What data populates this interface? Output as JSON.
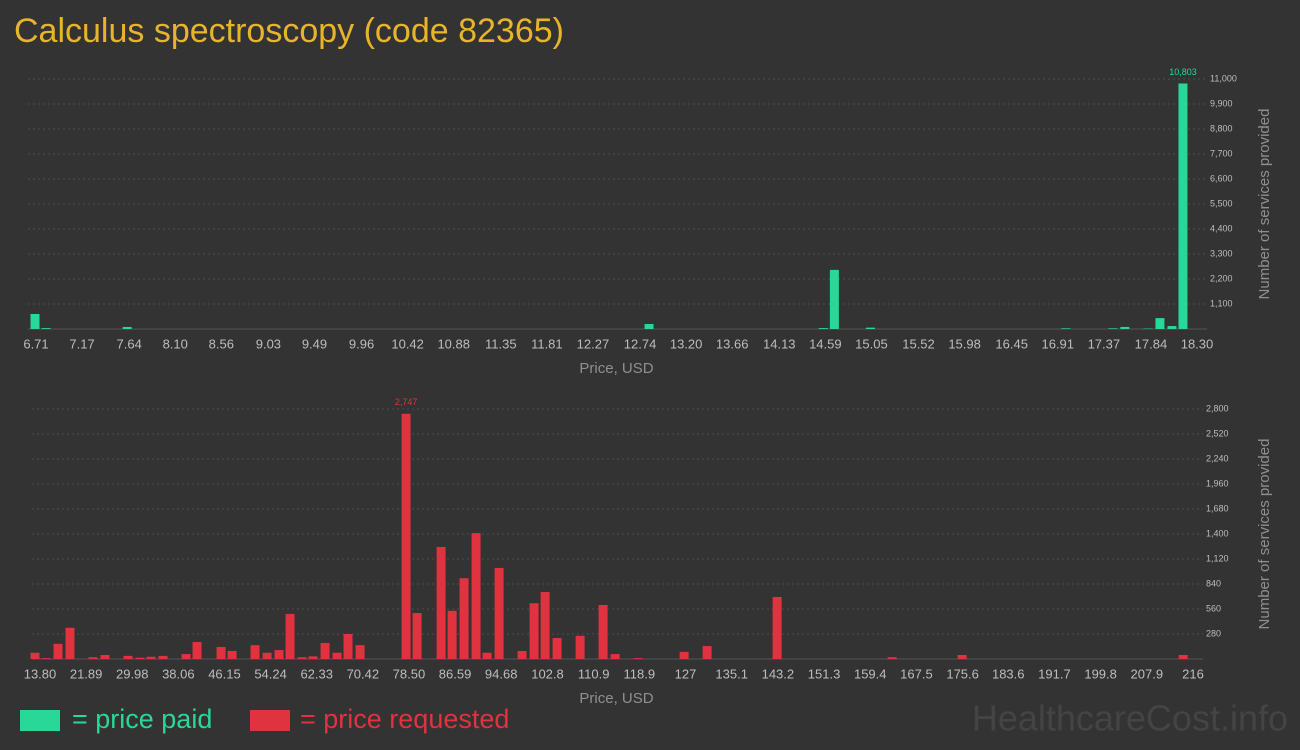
{
  "title": "Calculus spectroscopy (code 82365)",
  "watermark": "HealthcareCost.info",
  "chart_data": [
    {
      "type": "bar",
      "xlabel": "Price, USD",
      "ylabel": "Number of services provided",
      "xlim": [
        6.71,
        18.3
      ],
      "ylim": [
        0,
        11000
      ],
      "grid": true,
      "xticks": [
        6.71,
        7.17,
        7.64,
        {
          "value": 8.1,
          "label": "8.10"
        },
        8.56,
        9.03,
        9.49,
        9.96,
        10.42,
        10.88,
        11.35,
        11.81,
        12.27,
        12.74,
        {
          "value": 13.2,
          "label": "13.20"
        },
        13.66,
        14.13,
        14.59,
        15.05,
        15.52,
        15.98,
        16.45,
        16.91,
        17.37,
        17.84,
        {
          "value": 18.3,
          "label": "18.30"
        }
      ],
      "yticks": [
        {
          "value": 1100,
          "label": "1,100"
        },
        {
          "value": 2200,
          "label": "2,200"
        },
        {
          "value": 3300,
          "label": "3,300"
        },
        {
          "value": 4400,
          "label": "4,400"
        },
        {
          "value": 5500,
          "label": "5,500"
        },
        {
          "value": 6600,
          "label": "6,600"
        },
        {
          "value": 7700,
          "label": "7,700"
        },
        {
          "value": 8800,
          "label": "8,800"
        },
        {
          "value": 9900,
          "label": "9,900"
        },
        {
          "value": 11000,
          "label": "11,000"
        }
      ],
      "series": [
        {
          "name": "= price paid",
          "color": "#27d898",
          "x": [
            6.7,
            6.81,
            7.62,
            12.83,
            14.57,
            14.68,
            15.04,
            16.99,
            17.46,
            17.58,
            17.81,
            17.93,
            18.05,
            18.16
          ],
          "values": [
            660,
            40,
            90,
            220,
            40,
            2600,
            60,
            30,
            30,
            90,
            20,
            480,
            130,
            10803
          ],
          "value_labels": [
            null,
            null,
            null,
            null,
            null,
            null,
            null,
            null,
            null,
            null,
            null,
            null,
            null,
            "10,803"
          ]
        }
      ]
    },
    {
      "type": "bar",
      "xlabel": "Price, USD",
      "ylabel": "Number of services provided",
      "xlim": [
        13.8,
        216
      ],
      "ylim": [
        0,
        2800
      ],
      "grid": true,
      "xticks": [
        {
          "value": 13.8,
          "label": "13.80"
        },
        21.89,
        29.98,
        38.06,
        46.15,
        54.24,
        62.33,
        70.42,
        {
          "value": 78.5,
          "label": "78.50"
        },
        86.59,
        94.68,
        102.8,
        110.9,
        118.9,
        127,
        135.1,
        143.2,
        151.3,
        159.4,
        167.5,
        175.6,
        183.6,
        191.7,
        199.8,
        207.9,
        216
      ],
      "yticks": [
        280,
        560,
        840,
        {
          "value": 1120,
          "label": "1,120"
        },
        {
          "value": 1400,
          "label": "1,400"
        },
        {
          "value": 1680,
          "label": "1,680"
        },
        {
          "value": 1960,
          "label": "1,960"
        },
        {
          "value": 2240,
          "label": "2,240"
        },
        {
          "value": 2520,
          "label": "2,520"
        },
        {
          "value": 2800,
          "label": "2,800"
        }
      ],
      "series": [
        {
          "name": "= price requested",
          "color": "#e0323f",
          "x": [
            12.92,
            14.85,
            16.96,
            19.06,
            23.1,
            25.2,
            29.24,
            31.34,
            33.27,
            35.37,
            39.41,
            41.34,
            45.55,
            47.48,
            51.51,
            53.62,
            55.72,
            57.65,
            59.75,
            61.68,
            63.79,
            65.89,
            67.82,
            69.93,
            78.0,
            79.93,
            84.14,
            86.07,
            88.17,
            90.27,
            92.2,
            94.31,
            98.34,
            100.45,
            102.38,
            104.48,
            108.52,
            112.55,
            114.66,
            118.69,
            126.76,
            130.79,
            143.07,
            163.24,
            175.52,
            214.28
          ],
          "values": [
            70,
            10,
            170,
            350,
            20,
            45,
            35,
            15,
            25,
            35,
            55,
            190,
            135,
            90,
            155,
            70,
            100,
            505,
            20,
            30,
            180,
            70,
            280,
            155,
            2747,
            515,
            1255,
            540,
            905,
            1410,
            70,
            1020,
            90,
            625,
            750,
            235,
            260,
            605,
            55,
            10,
            80,
            145,
            695,
            20,
            45,
            45
          ],
          "value_labels": [
            null,
            null,
            null,
            null,
            null,
            null,
            null,
            null,
            null,
            null,
            null,
            null,
            null,
            null,
            null,
            null,
            null,
            null,
            null,
            null,
            null,
            null,
            null,
            null,
            "2,747",
            null,
            null,
            null,
            null,
            null,
            null,
            null,
            null,
            null,
            null,
            null,
            null,
            null,
            null,
            null,
            null,
            null,
            null,
            null,
            null,
            null
          ]
        }
      ]
    }
  ]
}
